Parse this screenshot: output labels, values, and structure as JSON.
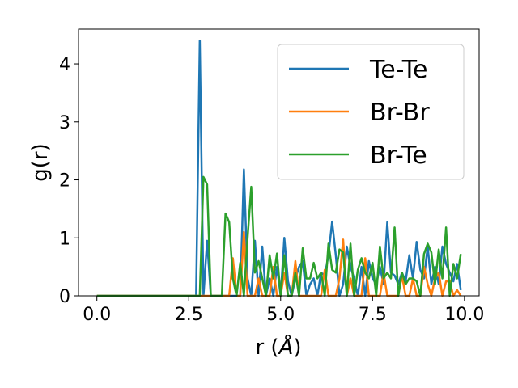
{
  "chart_data": {
    "type": "line",
    "xlabel": "r (",
    "xlabel_unit": "Å",
    "xlabel_close": ")",
    "ylabel": "g(r)",
    "xlim": [
      -0.5,
      10.4
    ],
    "ylim": [
      0,
      4.6
    ],
    "xticks": [
      0.0,
      2.5,
      5.0,
      7.5,
      10.0
    ],
    "xtick_labels": [
      "0.0",
      "2.5",
      "5.0",
      "7.5",
      "10.0"
    ],
    "yticks": [
      0,
      1,
      2,
      3,
      4
    ],
    "ytick_labels": [
      "0",
      "1",
      "2",
      "3",
      "4"
    ],
    "grid": false,
    "legend_position": "top-right",
    "series": [
      {
        "name": "Te-Te",
        "color": "#1f77b4",
        "x": [
          0.0,
          0.1,
          0.2,
          0.3,
          0.4,
          0.5,
          0.6,
          0.7,
          0.8,
          0.9,
          1.0,
          1.1,
          1.2,
          1.3,
          1.4,
          1.5,
          1.6,
          1.7,
          1.8,
          1.9,
          2.0,
          2.1,
          2.2,
          2.3,
          2.4,
          2.5,
          2.6,
          2.7,
          2.8,
          2.9,
          3.0,
          3.1,
          3.2,
          3.3,
          3.4,
          3.5,
          3.6,
          3.7,
          3.8,
          3.9,
          4.0,
          4.1,
          4.2,
          4.3,
          4.4,
          4.5,
          4.6,
          4.7,
          4.8,
          4.9,
          5.0,
          5.1,
          5.2,
          5.3,
          5.4,
          5.5,
          5.6,
          5.7,
          5.8,
          5.9,
          6.0,
          6.1,
          6.2,
          6.3,
          6.4,
          6.5,
          6.6,
          6.7,
          6.8,
          6.9,
          7.0,
          7.1,
          7.2,
          7.3,
          7.4,
          7.5,
          7.6,
          7.7,
          7.8,
          7.9,
          8.0,
          8.1,
          8.2,
          8.3,
          8.4,
          8.5,
          8.6,
          8.7,
          8.8,
          8.9,
          9.0,
          9.1,
          9.2,
          9.3,
          9.4,
          9.5,
          9.6,
          9.7,
          9.8,
          9.9
        ],
        "y": [
          0,
          0,
          0,
          0,
          0,
          0,
          0,
          0,
          0,
          0,
          0,
          0,
          0,
          0,
          0,
          0,
          0,
          0,
          0,
          0,
          0,
          0,
          0,
          0,
          0,
          0,
          0,
          0,
          4.4,
          0,
          0.95,
          0,
          0,
          0,
          0,
          0,
          0,
          0,
          0,
          0,
          2.18,
          0.3,
          0,
          0.95,
          0,
          0.85,
          0,
          0.3,
          0,
          0.5,
          0,
          1.0,
          0.25,
          0,
          0.3,
          0.5,
          0.6,
          0,
          0.2,
          0.3,
          0,
          0.4,
          0.35,
          0.7,
          1.28,
          0.7,
          0,
          0.2,
          0.85,
          0.5,
          0.3,
          0,
          0.5,
          0,
          0.6,
          0.3,
          0.2,
          0.5,
          0.2,
          1.27,
          0.4,
          0.35,
          0.2,
          0.4,
          0.25,
          0.7,
          0.3,
          0.93,
          0.45,
          0.3,
          0.85,
          0.2,
          0.5,
          0.2,
          0.85,
          0.55,
          0.4,
          0.25,
          0.55,
          0.1
        ]
      },
      {
        "name": "Br-Br",
        "color": "#ff7f0e",
        "x": [
          0.0,
          0.1,
          0.2,
          0.3,
          0.4,
          0.5,
          0.6,
          0.7,
          0.8,
          0.9,
          1.0,
          1.1,
          1.2,
          1.3,
          1.4,
          1.5,
          1.6,
          1.7,
          1.8,
          1.9,
          2.0,
          2.1,
          2.2,
          2.3,
          2.4,
          2.5,
          2.6,
          2.7,
          2.8,
          2.9,
          3.0,
          3.1,
          3.2,
          3.3,
          3.4,
          3.5,
          3.6,
          3.7,
          3.8,
          3.9,
          4.0,
          4.1,
          4.2,
          4.3,
          4.4,
          4.5,
          4.6,
          4.7,
          4.8,
          4.9,
          5.0,
          5.1,
          5.2,
          5.3,
          5.4,
          5.5,
          5.6,
          5.7,
          5.8,
          5.9,
          6.0,
          6.1,
          6.2,
          6.3,
          6.4,
          6.5,
          6.6,
          6.7,
          6.8,
          6.9,
          7.0,
          7.1,
          7.2,
          7.3,
          7.4,
          7.5,
          7.6,
          7.7,
          7.8,
          7.9,
          8.0,
          8.1,
          8.2,
          8.3,
          8.4,
          8.5,
          8.6,
          8.7,
          8.8,
          8.9,
          9.0,
          9.1,
          9.2,
          9.3,
          9.4,
          9.5,
          9.6,
          9.7,
          9.8,
          9.9
        ],
        "y": [
          0,
          0,
          0,
          0,
          0,
          0,
          0,
          0,
          0,
          0,
          0,
          0,
          0,
          0,
          0,
          0,
          0,
          0,
          0,
          0,
          0,
          0,
          0,
          0,
          0,
          0,
          0,
          0,
          0,
          0,
          0,
          0,
          0,
          0,
          0,
          0,
          0,
          0.65,
          0,
          0,
          1.1,
          0,
          0,
          0,
          0.3,
          0,
          0,
          0,
          0.5,
          0,
          0,
          0.4,
          0,
          0,
          0.6,
          0,
          0,
          0,
          0,
          0,
          0,
          0,
          0.45,
          0,
          0,
          0,
          0.3,
          0.97,
          0,
          0.3,
          0,
          0,
          0,
          0.65,
          0,
          0,
          0,
          0,
          0.4,
          0,
          0,
          0,
          0,
          0.35,
          0,
          0,
          0.3,
          0,
          0,
          0.5,
          0.2,
          0,
          0.3,
          0.4,
          0,
          0.25,
          0.25,
          0,
          0.1,
          0
        ]
      },
      {
        "name": "Br-Te",
        "color": "#2ca02c",
        "x": [
          0.0,
          0.1,
          0.2,
          0.3,
          0.4,
          0.5,
          0.6,
          0.7,
          0.8,
          0.9,
          1.0,
          1.1,
          1.2,
          1.3,
          1.4,
          1.5,
          1.6,
          1.7,
          1.8,
          1.9,
          2.0,
          2.1,
          2.2,
          2.3,
          2.4,
          2.5,
          2.6,
          2.7,
          2.8,
          2.9,
          3.0,
          3.1,
          3.2,
          3.3,
          3.4,
          3.5,
          3.6,
          3.7,
          3.8,
          3.9,
          4.0,
          4.1,
          4.2,
          4.3,
          4.4,
          4.5,
          4.6,
          4.7,
          4.8,
          4.9,
          5.0,
          5.1,
          5.2,
          5.3,
          5.4,
          5.5,
          5.6,
          5.7,
          5.8,
          5.9,
          6.0,
          6.1,
          6.2,
          6.3,
          6.4,
          6.5,
          6.6,
          6.7,
          6.8,
          6.9,
          7.0,
          7.1,
          7.2,
          7.3,
          7.4,
          7.5,
          7.6,
          7.7,
          7.8,
          7.9,
          8.0,
          8.1,
          8.2,
          8.3,
          8.4,
          8.5,
          8.6,
          8.7,
          8.8,
          8.9,
          9.0,
          9.1,
          9.2,
          9.3,
          9.4,
          9.5,
          9.6,
          9.7,
          9.8,
          9.9
        ],
        "y": [
          0,
          0,
          0,
          0,
          0,
          0,
          0,
          0,
          0,
          0,
          0,
          0,
          0,
          0,
          0,
          0,
          0,
          0,
          0,
          0,
          0,
          0,
          0,
          0,
          0,
          0,
          0,
          0,
          0,
          2.05,
          1.92,
          0,
          0,
          0,
          0,
          1.42,
          1.27,
          0.3,
          0,
          0.57,
          0,
          1.0,
          1.88,
          0.4,
          0.6,
          0.3,
          0,
          0.7,
          0.3,
          0.73,
          0,
          0.7,
          0,
          0,
          0.4,
          0,
          0.82,
          0.3,
          0.3,
          0.57,
          0.3,
          0.4,
          0,
          0.9,
          0.45,
          0.4,
          0.8,
          0.75,
          0,
          0.9,
          0,
          0.45,
          0.65,
          0.4,
          0.3,
          0.57,
          0,
          0.85,
          0.3,
          0.4,
          0.3,
          1.18,
          0,
          0.4,
          0.2,
          0.3,
          0.3,
          0.25,
          0,
          0.72,
          0.9,
          0.75,
          0.2,
          0.8,
          0.3,
          1.18,
          0,
          0.55,
          0.3,
          0.72
        ]
      }
    ]
  }
}
